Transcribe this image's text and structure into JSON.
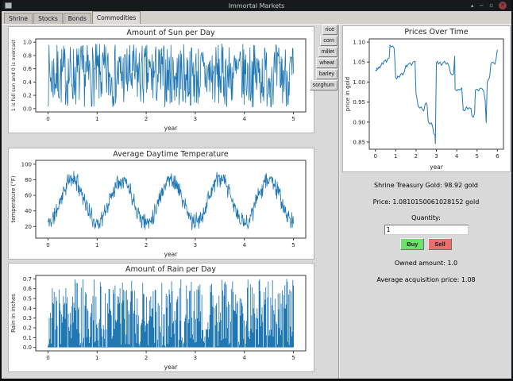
{
  "window": {
    "title": "Immortal Markets",
    "controls": {
      "shade": "▴",
      "minimize": "−",
      "maximize": "▫",
      "close": "✕"
    }
  },
  "tabs": {
    "items": [
      "Shrine",
      "Stocks",
      "Bonds",
      "Commodities"
    ],
    "active": "Commodities"
  },
  "commodities": [
    "rice",
    "corn",
    "millet",
    "wheat",
    "barley",
    "sorghum"
  ],
  "trade": {
    "treasury_line": "Shrine Treasury Gold: 98.92 gold",
    "price_line": "Price: 1.0810150061028152 gold",
    "quantity_label": "Quantity:",
    "quantity_value": "1",
    "buy_label": "Buy",
    "sell_label": "Sell",
    "owned_line": "Owned amount: 1.0",
    "avg_line": "Average acquisition price: 1.08",
    "buy_color": "#6ce26c",
    "sell_color": "#e86f6f"
  },
  "chart_data": {
    "line_color": "#1f77b4",
    "sun": {
      "type": "line",
      "title": "Amount of Sun per Day",
      "xlabel": "year",
      "ylabel": "1 is full sun and 0 is overcast",
      "xlim": [
        -0.25,
        5.25
      ],
      "ylim": [
        -0.05,
        1.05
      ],
      "xticks": [
        0,
        1,
        2,
        3,
        4,
        5
      ],
      "xtick_labels": [
        "0",
        "1",
        "2",
        "3",
        "4",
        "5"
      ],
      "yticks": [
        0.0,
        0.2,
        0.4,
        0.6,
        0.8,
        1.0
      ],
      "ytick_labels": [
        "0.0",
        "0.2",
        "0.4",
        "0.6",
        "0.8",
        "1.0"
      ],
      "gen": {
        "kind": "uniform",
        "seed": 7,
        "n": 520,
        "x0": 0,
        "x1": 5,
        "min": 0.02,
        "max": 0.98
      }
    },
    "temp": {
      "type": "line",
      "title": "Average Daytime Temperature",
      "xlabel": "year",
      "ylabel": "temperature (°F)",
      "xlim": [
        -0.25,
        5.25
      ],
      "ylim": [
        5,
        105
      ],
      "xticks": [
        0,
        1,
        2,
        3,
        4,
        5
      ],
      "xtick_labels": [
        "0",
        "1",
        "2",
        "3",
        "4",
        "5"
      ],
      "yticks": [
        20,
        40,
        60,
        80,
        100
      ],
      "ytick_labels": [
        "20",
        "40",
        "60",
        "80",
        "100"
      ],
      "gen": {
        "kind": "seasonal",
        "seed": 11,
        "n": 620,
        "x0": 0,
        "x1": 5,
        "mean": 53,
        "amp": 28,
        "noise": 14,
        "clampMin": 8,
        "clampMax": 102
      }
    },
    "rain": {
      "type": "bars",
      "title": "Amount of Rain per Day",
      "xlabel": "year",
      "ylabel": "Rain in inches",
      "xlim": [
        -0.25,
        5.25
      ],
      "ylim": [
        -0.035,
        0.735
      ],
      "xticks": [
        0,
        1,
        2,
        3,
        4,
        5
      ],
      "xtick_labels": [
        "0",
        "1",
        "2",
        "3",
        "4",
        "5"
      ],
      "yticks": [
        0.0,
        0.1,
        0.2,
        0.3,
        0.4,
        0.5,
        0.6,
        0.7
      ],
      "ytick_labels": [
        "0.0",
        "0.1",
        "0.2",
        "0.3",
        "0.4",
        "0.5",
        "0.6",
        "0.7"
      ],
      "gen": {
        "kind": "rain",
        "seed": 3,
        "n": 400,
        "x0": 0,
        "x1": 5,
        "max": 0.7,
        "pow": 1.15,
        "zero_frac": 0.06
      }
    },
    "price": {
      "type": "line",
      "title": "Prices Over Time",
      "xlabel": "year",
      "ylabel": "price in gold",
      "xlim": [
        -0.3,
        6.3
      ],
      "ylim": [
        0.832,
        1.108
      ],
      "xticks": [
        0,
        1,
        2,
        3,
        4,
        5,
        6
      ],
      "xtick_labels": [
        "0",
        "1",
        "2",
        "3",
        "4",
        "5",
        "6"
      ],
      "yticks": [
        0.85,
        0.9,
        0.95,
        1.0,
        1.05,
        1.1
      ],
      "ytick_labels": [
        "0.85",
        "0.90",
        "0.95",
        "1.00",
        "1.05",
        "1.10"
      ],
      "points": [
        [
          0.0,
          1.03
        ],
        [
          0.05,
          1.028
        ],
        [
          0.08,
          1.035
        ],
        [
          0.12,
          1.032
        ],
        [
          0.18,
          1.038
        ],
        [
          0.22,
          1.035
        ],
        [
          0.28,
          1.042
        ],
        [
          0.33,
          1.048
        ],
        [
          0.38,
          1.045
        ],
        [
          0.42,
          1.052
        ],
        [
          0.5,
          1.055
        ],
        [
          0.55,
          1.05
        ],
        [
          0.6,
          1.058
        ],
        [
          0.68,
          1.06
        ],
        [
          0.72,
          1.092
        ],
        [
          0.78,
          1.088
        ],
        [
          0.85,
          1.09
        ],
        [
          0.92,
          1.085
        ],
        [
          0.95,
          1.062
        ],
        [
          1.0,
          1.01
        ],
        [
          1.05,
          1.008
        ],
        [
          1.1,
          1.015
        ],
        [
          1.18,
          1.012
        ],
        [
          1.25,
          1.02
        ],
        [
          1.3,
          1.022
        ],
        [
          1.35,
          1.018
        ],
        [
          1.42,
          1.025
        ],
        [
          1.5,
          1.042
        ],
        [
          1.55,
          1.038
        ],
        [
          1.62,
          1.045
        ],
        [
          1.7,
          1.048
        ],
        [
          1.78,
          1.042
        ],
        [
          1.85,
          1.05
        ],
        [
          1.95,
          1.052
        ],
        [
          2.0,
          0.97
        ],
        [
          2.05,
          0.958
        ],
        [
          2.1,
          0.94
        ],
        [
          2.18,
          0.935
        ],
        [
          2.25,
          0.938
        ],
        [
          2.3,
          0.932
        ],
        [
          2.38,
          0.928
        ],
        [
          2.45,
          0.945
        ],
        [
          2.5,
          0.948
        ],
        [
          2.55,
          0.94
        ],
        [
          2.6,
          0.9
        ],
        [
          2.68,
          0.895
        ],
        [
          2.75,
          0.898
        ],
        [
          2.8,
          0.892
        ],
        [
          2.88,
          0.87
        ],
        [
          2.93,
          0.868
        ],
        [
          2.95,
          0.845
        ],
        [
          3.0,
          1.048
        ],
        [
          3.05,
          1.052
        ],
        [
          3.1,
          1.045
        ],
        [
          3.18,
          1.05
        ],
        [
          3.25,
          1.042
        ],
        [
          3.32,
          1.048
        ],
        [
          3.4,
          1.052
        ],
        [
          3.48,
          1.045
        ],
        [
          3.55,
          1.048
        ],
        [
          3.62,
          1.04
        ],
        [
          3.7,
          1.022
        ],
        [
          3.78,
          1.018
        ],
        [
          3.85,
          1.02
        ],
        [
          3.9,
          1.065
        ],
        [
          3.92,
          0.982
        ],
        [
          4.0,
          0.978
        ],
        [
          4.08,
          0.982
        ],
        [
          4.15,
          0.98
        ],
        [
          4.25,
          0.985
        ],
        [
          4.32,
          0.93
        ],
        [
          4.4,
          0.928
        ],
        [
          4.48,
          0.938
        ],
        [
          4.55,
          0.932
        ],
        [
          4.62,
          0.936
        ],
        [
          4.7,
          0.934
        ],
        [
          4.75,
          0.915
        ],
        [
          4.82,
          0.912
        ],
        [
          4.88,
          0.922
        ],
        [
          4.92,
          0.98
        ],
        [
          5.0,
          0.982
        ],
        [
          5.08,
          0.978
        ],
        [
          5.15,
          0.985
        ],
        [
          5.25,
          0.983
        ],
        [
          5.32,
          0.978
        ],
        [
          5.4,
          0.955
        ],
        [
          5.45,
          0.898
        ],
        [
          5.5,
          1.0
        ],
        [
          5.55,
          1.005
        ],
        [
          5.62,
          1.012
        ],
        [
          5.68,
          1.045
        ],
        [
          5.75,
          1.05
        ],
        [
          5.82,
          1.048
        ],
        [
          5.88,
          1.045
        ],
        [
          5.95,
          1.062
        ],
        [
          6.0,
          1.081
        ]
      ]
    }
  }
}
